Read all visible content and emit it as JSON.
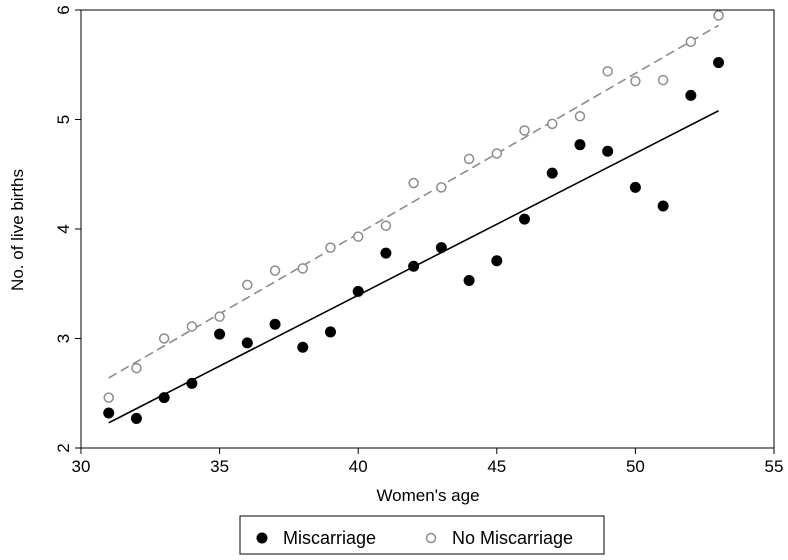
{
  "chart_data": {
    "type": "scatter",
    "xlabel": "Women's age",
    "ylabel": "No. of live births",
    "xlim": [
      30,
      55
    ],
    "ylim": [
      2,
      6
    ],
    "xticks": [
      30,
      35,
      40,
      45,
      50,
      55
    ],
    "yticks": [
      2,
      3,
      4,
      5,
      6
    ],
    "grid": false,
    "legend_position": "bottom-center",
    "series": [
      {
        "name": "Miscarriage",
        "marker": "filled-circle",
        "color": "#000000",
        "x": [
          31,
          32,
          33,
          34,
          35,
          36,
          37,
          38,
          39,
          40,
          41,
          42,
          43,
          44,
          45,
          46,
          47,
          48,
          49,
          50,
          51,
          52,
          53
        ],
        "y": [
          2.32,
          2.27,
          2.46,
          2.59,
          3.04,
          2.96,
          3.13,
          2.92,
          3.06,
          3.43,
          3.78,
          3.66,
          3.83,
          3.53,
          3.71,
          4.09,
          4.51,
          4.77,
          4.71,
          4.38,
          4.21,
          5.22,
          5.52
        ],
        "fit": {
          "style": "solid",
          "x": [
            31,
            53
          ],
          "y": [
            2.23,
            5.08
          ]
        }
      },
      {
        "name": "No Miscarriage",
        "marker": "hollow-circle",
        "color": "#8c8c8c",
        "x": [
          31,
          32,
          33,
          34,
          35,
          36,
          37,
          38,
          39,
          40,
          41,
          42,
          43,
          44,
          45,
          46,
          47,
          48,
          49,
          50,
          51,
          52,
          53
        ],
        "y": [
          2.46,
          2.73,
          3.0,
          3.11,
          3.2,
          3.49,
          3.62,
          3.64,
          3.83,
          3.93,
          4.03,
          4.42,
          4.38,
          4.64,
          4.69,
          4.9,
          4.96,
          5.03,
          5.44,
          5.35,
          5.36,
          5.71,
          5.95
        ],
        "fit": {
          "style": "dashed",
          "x": [
            31,
            53
          ],
          "y": [
            2.64,
            5.86
          ]
        }
      }
    ]
  }
}
